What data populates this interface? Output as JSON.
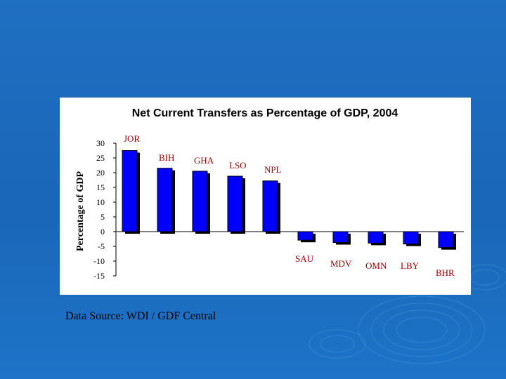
{
  "source_note": "Data Source: WDI / GDF Central",
  "colors": {
    "background": "#1a6cbf",
    "bar": "#0000ff",
    "bar_shadow": "#000000",
    "panel": "#ffffff"
  },
  "chart_data": {
    "type": "bar",
    "title": "Net Current Transfers as Percentage of GDP, 2004",
    "xlabel": "",
    "ylabel": "Percentage of GDP",
    "ylim": [
      -15,
      30
    ],
    "yticks": [
      "30",
      "25",
      "20",
      "15",
      "10",
      "5",
      "0",
      "-5",
      "-10",
      "-15"
    ],
    "grid": false,
    "categories": [
      "JOR",
      "BIH",
      "GHA",
      "LSO",
      "NPL",
      "SAU",
      "MDV",
      "OMN",
      "LBY",
      "BHR"
    ],
    "values": [
      27.5,
      21.5,
      20.5,
      18.8,
      17.2,
      -2.9,
      -3.7,
      -3.9,
      -4.2,
      -5.4
    ]
  }
}
